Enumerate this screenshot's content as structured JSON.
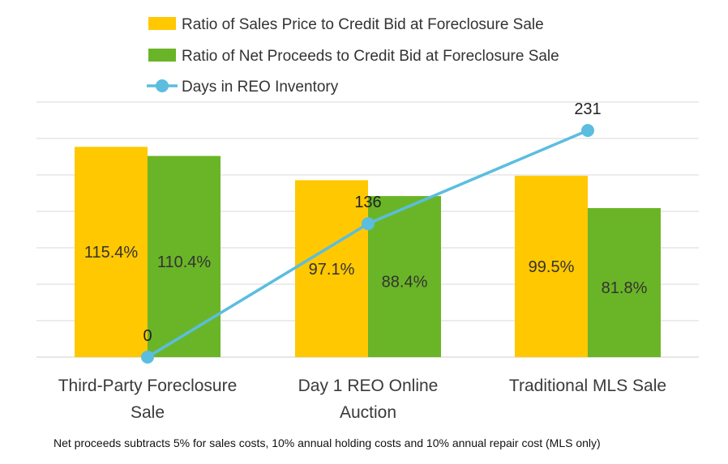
{
  "chart_data": {
    "type": "bar",
    "categories": [
      [
        "Third-Party Foreclosure",
        "Sale"
      ],
      [
        "Day 1 REO Online",
        "Auction"
      ],
      [
        "Traditional MLS Sale"
      ]
    ],
    "series": [
      {
        "name": "Ratio of Sales Price to Credit Bid at Foreclosure Sale",
        "type": "bar",
        "values": [
          115.4,
          97.1,
          99.5
        ],
        "labels": [
          "115.4%",
          "97.1%",
          "99.5%"
        ],
        "color": "#FFC800"
      },
      {
        "name": "Ratio of Net Proceeds to Credit Bid at Foreclosure Sale",
        "type": "bar",
        "values": [
          110.4,
          88.4,
          81.8
        ],
        "labels": [
          "110.4%",
          "88.4%",
          "81.8%"
        ],
        "color": "#6AB527"
      },
      {
        "name": "Days in REO Inventory",
        "type": "line",
        "values": [
          0,
          136,
          231
        ],
        "labels": [
          "0",
          "136",
          "231"
        ],
        "color": "#5BBDE0"
      }
    ],
    "bar_axis_range": [
      0,
      140
    ],
    "line_axis_range": [
      0,
      260
    ],
    "grid": true,
    "legend_position": "top"
  },
  "footnote": "Net proceeds subtracts 5%  for sales costs, 10% annual holding costs and 10% annual repair cost (MLS only)"
}
